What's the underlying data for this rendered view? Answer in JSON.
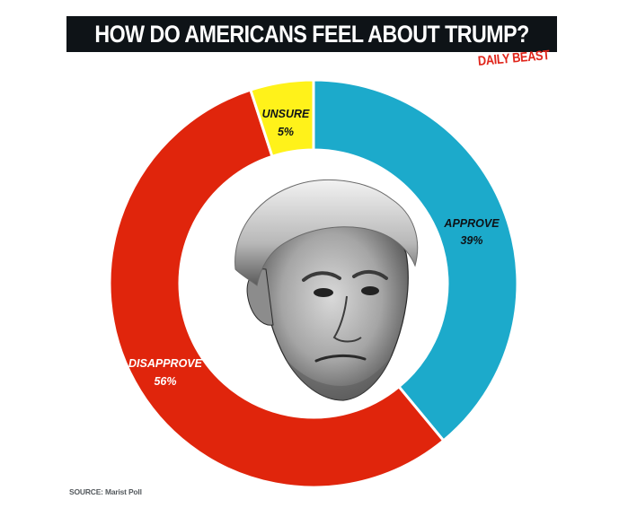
{
  "header": {
    "title": "HOW DO AMERICANS FEEL ABOUT TRUMP?",
    "brand": "DAILY BEAST"
  },
  "chart_data": {
    "type": "pie",
    "variant": "donut",
    "title": "HOW DO AMERICANS FEEL ABOUT TRUMP?",
    "slices": [
      {
        "label": "APPROVE",
        "value": 39,
        "value_label": "39%",
        "color": "#1caacb"
      },
      {
        "label": "DISAPPROVE",
        "value": 56,
        "value_label": "56%",
        "color": "#e0250c"
      },
      {
        "label": "UNSURE",
        "value": 5,
        "value_label": "5%",
        "color": "#fff21a"
      }
    ],
    "label_colors": {
      "APPROVE": "#0e1317",
      "DISAPPROVE": "#ffffff",
      "UNSURE": "#0e1317"
    },
    "center_image": "portrait-photo"
  },
  "footer": {
    "source": "SOURCE: Marist Poll"
  }
}
